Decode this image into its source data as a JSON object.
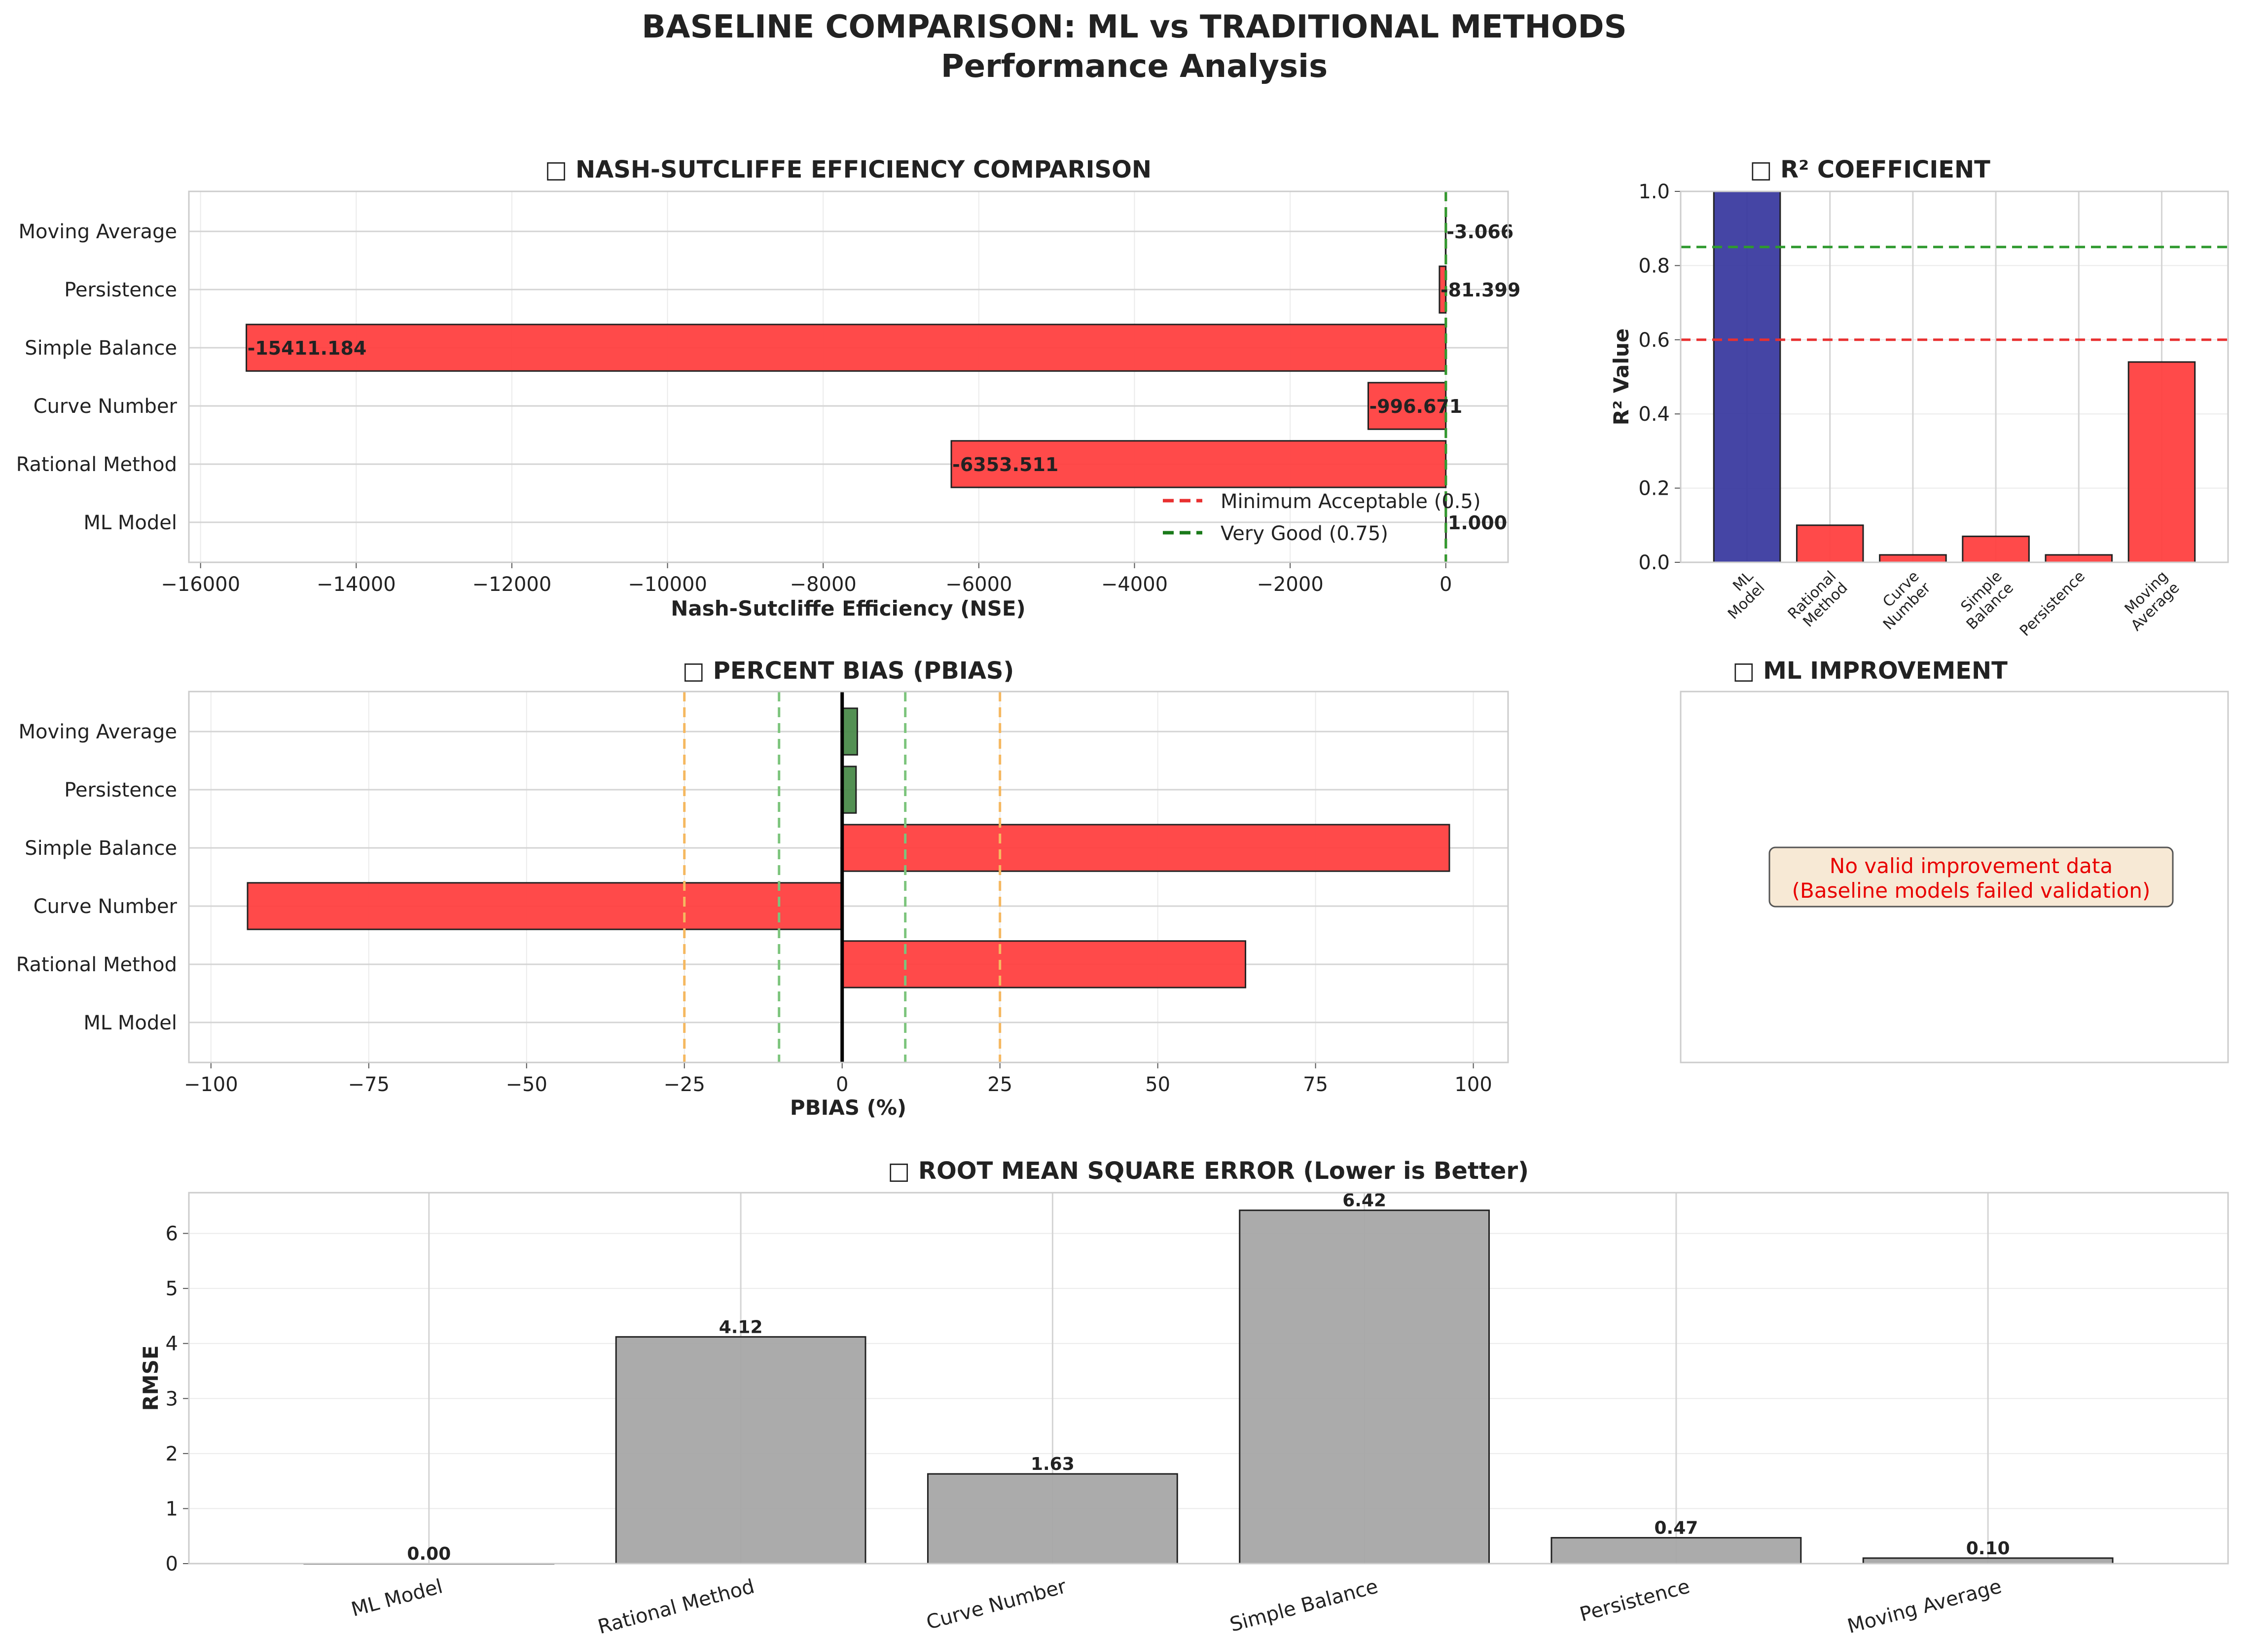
{
  "figure": {
    "title_line1": "BASELINE COMPARISON: ML vs TRADITIONAL METHODS",
    "title_line2": "Performance Analysis"
  },
  "colors": {
    "red": "#ff4040",
    "green": "#4a8a4a",
    "navy": "#3b3ba0",
    "gray": "#a6a6a6",
    "ref_red": "#e83030",
    "ref_green": "#2f9a2f",
    "ref_orange": "#f5b860",
    "ref_lightgreen": "#7cc47c"
  },
  "chart_data": [
    {
      "id": "nse",
      "type": "bar",
      "orientation": "horizontal",
      "title": "□ NASH-SUTCLIFFE EFFICIENCY COMPARISON",
      "xlabel": "Nash-Sutcliffe Efficiency (NSE)",
      "categories": [
        "ML Model",
        "Rational Method",
        "Curve Number",
        "Simple Balance",
        "Persistence",
        "Moving Average"
      ],
      "values": [
        1.0,
        -6353.511,
        -996.671,
        -15411.184,
        -81.399,
        -3.066
      ],
      "value_labels": [
        "1.000",
        "-6353.511",
        "-996.671",
        "-15411.184",
        "-81.399",
        "-3.066"
      ],
      "bar_colors": [
        "green",
        "red",
        "red",
        "red",
        "red",
        "red"
      ],
      "xlim": [
        -16150,
        800
      ],
      "xticks": [
        -16000,
        -14000,
        -12000,
        -10000,
        -8000,
        -6000,
        -4000,
        -2000,
        0
      ],
      "xtick_labels": [
        "−16000",
        "−14000",
        "−12000",
        "−10000",
        "−8000",
        "−6000",
        "−4000",
        "−2000",
        "0"
      ],
      "reference_lines": [
        {
          "value": 0.5,
          "label": "Minimum Acceptable (0.5)",
          "color": "ref_red"
        },
        {
          "value": 0.75,
          "label": "Very Good (0.75)",
          "color": "ref_green"
        }
      ],
      "legend_position": "bottom-right",
      "grid": true
    },
    {
      "id": "r2",
      "type": "bar",
      "title": "□ R² COEFFICIENT",
      "ylabel": "R² Value",
      "categories": [
        "ML\nModel",
        "Rational\nMethod",
        "Curve\nNumber",
        "Simple\nBalance",
        "Persistence",
        "Moving\nAverage"
      ],
      "values": [
        1.0,
        0.1,
        0.02,
        0.07,
        0.02,
        0.54
      ],
      "bar_colors": [
        "navy",
        "red",
        "red",
        "red",
        "red",
        "red"
      ],
      "ylim": [
        0,
        1.0
      ],
      "yticks": [
        0,
        0.2,
        0.4,
        0.6,
        0.8,
        1.0
      ],
      "ytick_labels": [
        "0.0",
        "0.2",
        "0.4",
        "0.6",
        "0.8",
        "1.0"
      ],
      "reference_lines": [
        {
          "value": 0.6,
          "color": "ref_red"
        },
        {
          "value": 0.85,
          "color": "ref_green"
        }
      ],
      "grid": true
    },
    {
      "id": "pbias",
      "type": "bar",
      "orientation": "horizontal",
      "title": "□ PERCENT BIAS (PBIAS)",
      "xlabel": "PBIAS (%)",
      "categories": [
        "ML Model",
        "Rational Method",
        "Curve Number",
        "Simple Balance",
        "Persistence",
        "Moving Average"
      ],
      "values": [
        0.0,
        63.9,
        -94.2,
        96.2,
        2.2,
        2.4
      ],
      "bar_colors": [
        "green",
        "red",
        "red",
        "red",
        "green",
        "green"
      ],
      "xlim": [
        -103.5,
        105.5
      ],
      "xticks": [
        -100,
        -75,
        -50,
        -25,
        0,
        25,
        50,
        75,
        100
      ],
      "xtick_labels": [
        "−100",
        "−75",
        "−50",
        "−25",
        "0",
        "25",
        "50",
        "75",
        "100"
      ],
      "reference_lines": [
        {
          "value": -25,
          "color": "ref_orange"
        },
        {
          "value": 25,
          "color": "ref_orange"
        },
        {
          "value": -10,
          "color": "ref_lightgreen"
        },
        {
          "value": 10,
          "color": "ref_lightgreen"
        },
        {
          "value": 0,
          "color": "black"
        }
      ],
      "grid": true
    },
    {
      "id": "rmse",
      "type": "bar",
      "title": "□ ROOT MEAN SQUARE ERROR (Lower is Better)",
      "ylabel": "RMSE",
      "categories": [
        "ML Model",
        "Rational Method",
        "Curve Number",
        "Simple Balance",
        "Persistence",
        "Moving Average"
      ],
      "values": [
        0.0,
        4.12,
        1.63,
        6.42,
        0.47,
        0.1
      ],
      "value_labels": [
        "0.00",
        "4.12",
        "1.63",
        "6.42",
        "0.47",
        "0.10"
      ],
      "bar_colors": [
        "gray",
        "gray",
        "gray",
        "gray",
        "gray",
        "gray"
      ],
      "ylim": [
        0,
        6.74
      ],
      "yticks": [
        0,
        1,
        2,
        3,
        4,
        5,
        6
      ],
      "ytick_labels": [
        "0",
        "1",
        "2",
        "3",
        "4",
        "5",
        "6"
      ],
      "grid": true
    }
  ],
  "improvement_panel": {
    "title": "□ ML IMPROVEMENT",
    "message_line1": "No valid improvement data",
    "message_line2": "(Baseline models failed validation)"
  }
}
